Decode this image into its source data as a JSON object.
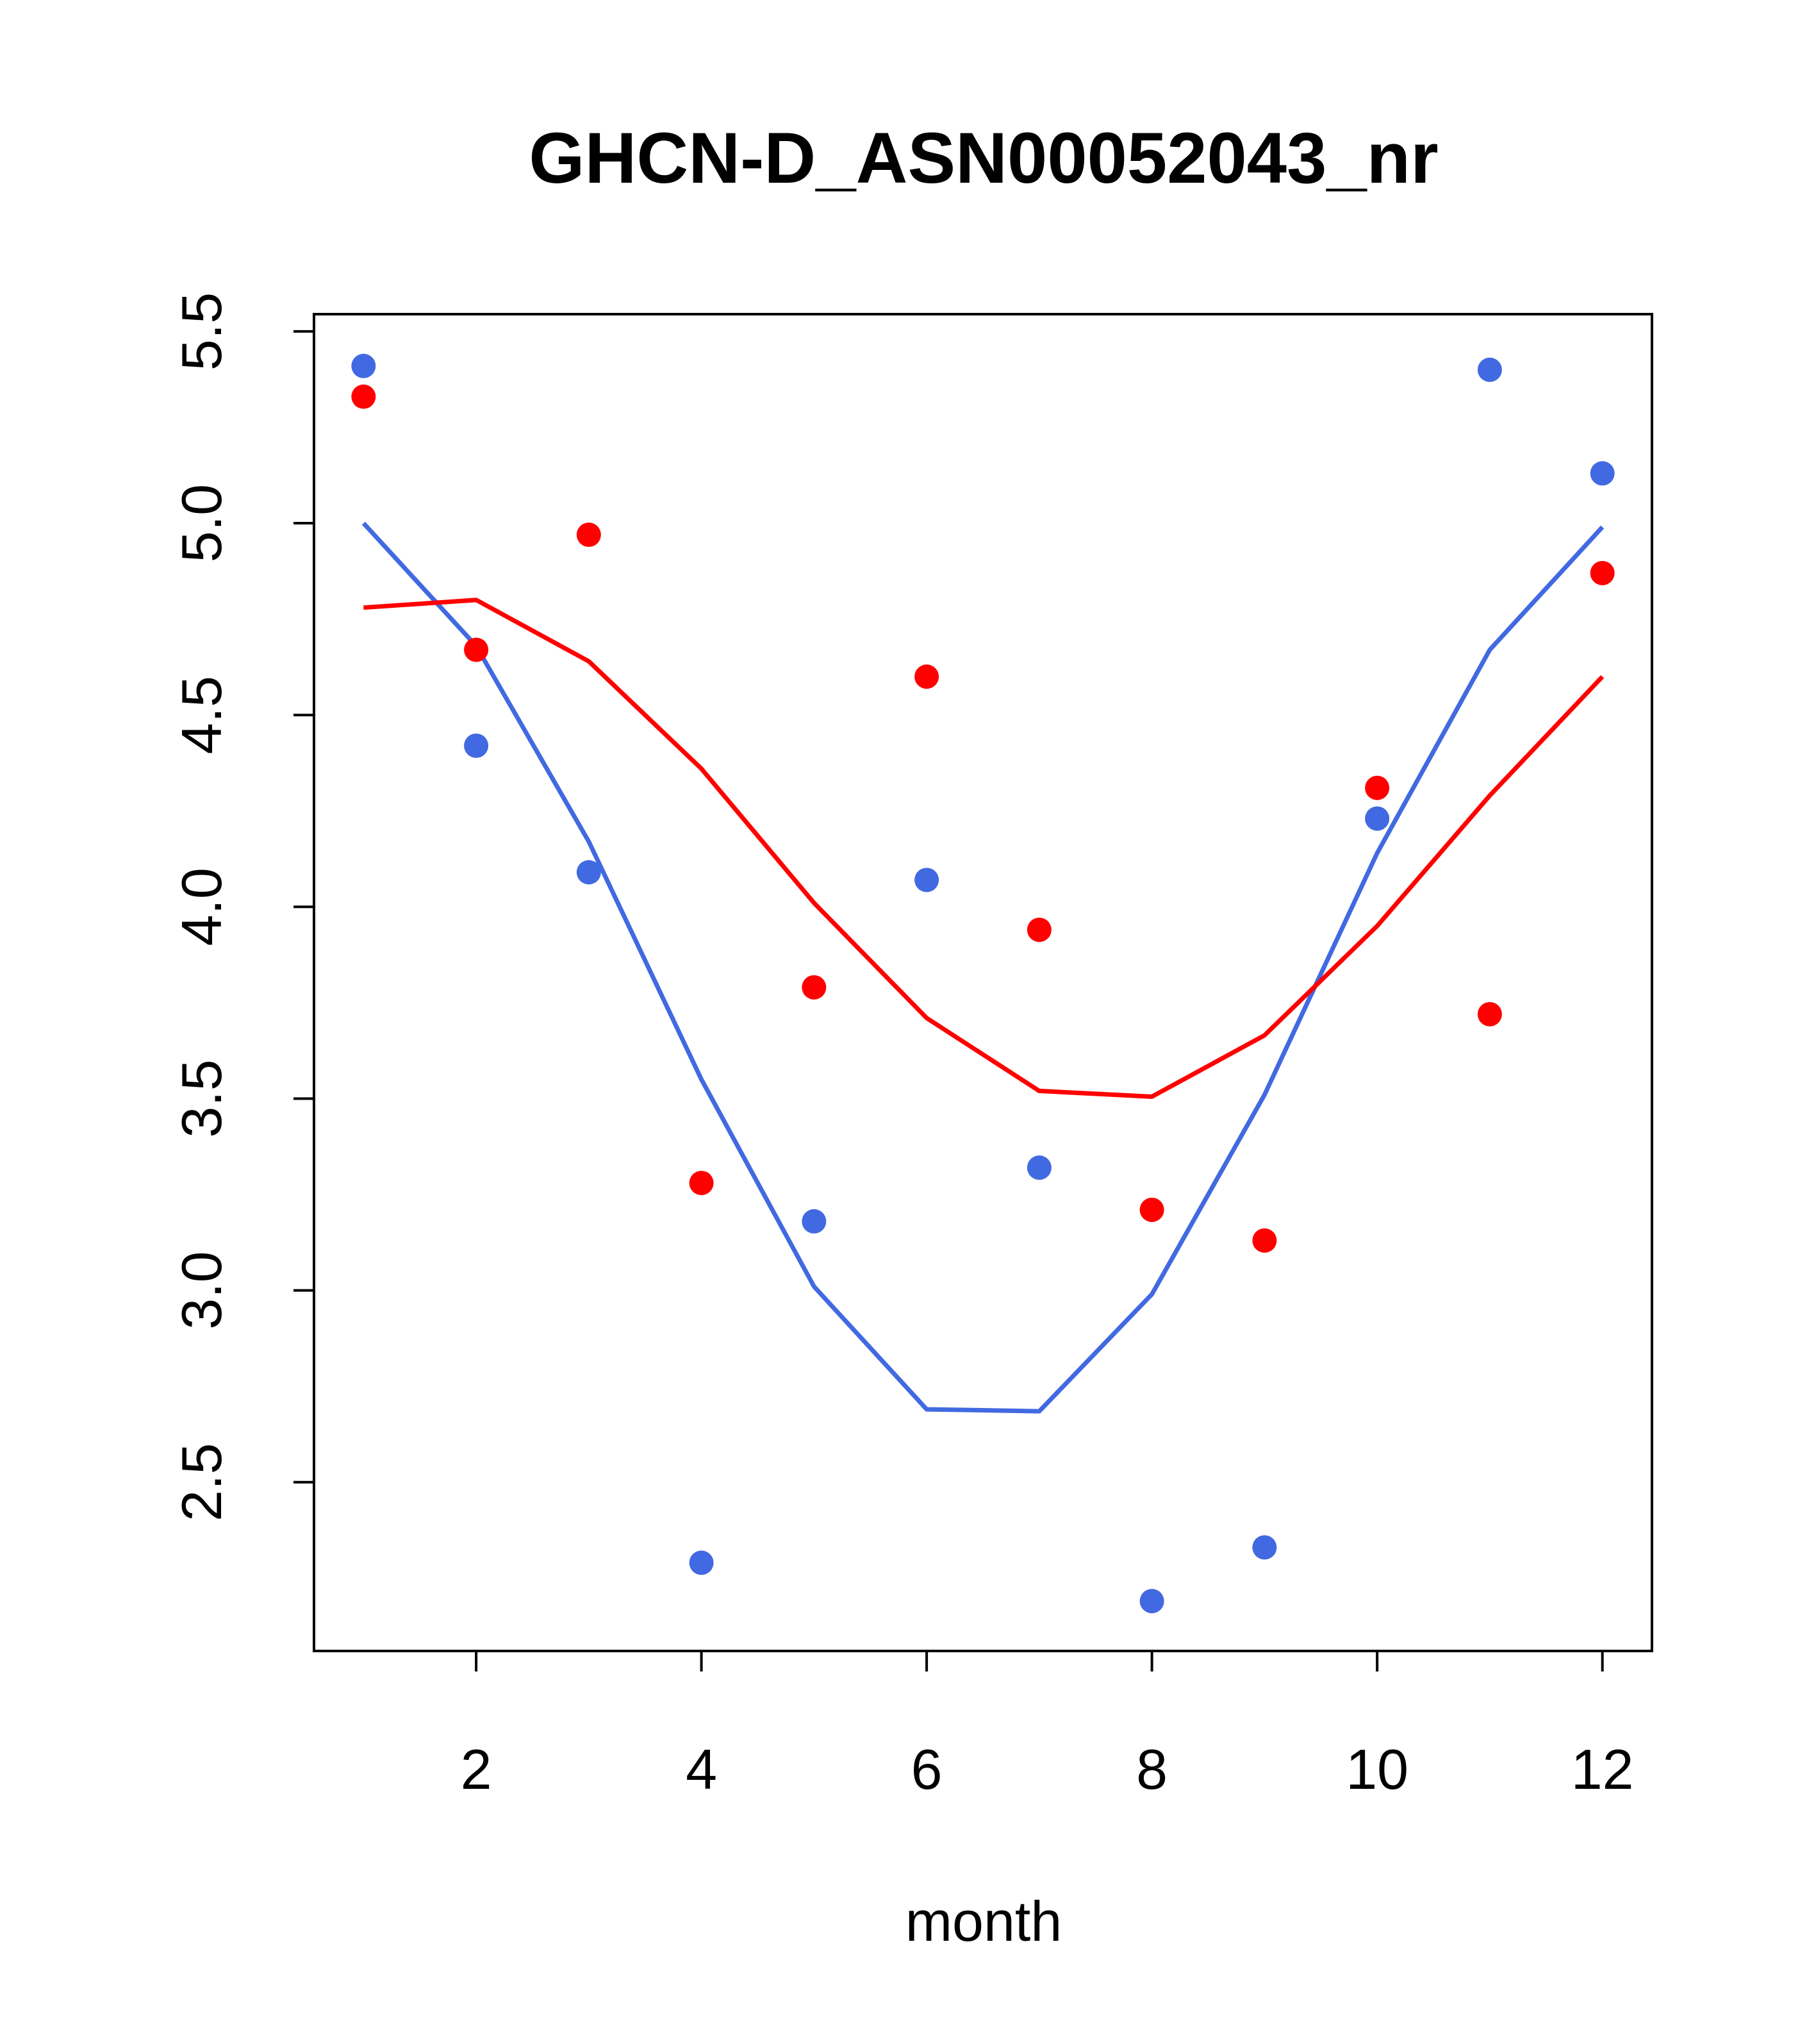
{
  "chart_data": {
    "type": "scatter",
    "title": "GHCN-D_ASN00052043_nr",
    "xlabel": "month",
    "ylabel": "",
    "xlim": [
      0.56,
      12.44
    ],
    "ylim": [
      2.06,
      5.545
    ],
    "x_ticks": [
      2,
      4,
      6,
      8,
      10,
      12
    ],
    "x_tick_labels": [
      "2",
      "4",
      "6",
      "8",
      "10",
      "12"
    ],
    "y_ticks": [
      2.5,
      3.0,
      3.5,
      4.0,
      4.5,
      5.0,
      5.5
    ],
    "y_tick_labels": [
      "2.5",
      "3.0",
      "3.5",
      "4.0",
      "4.5",
      "5.0",
      "5.5"
    ],
    "grid": false,
    "legend": "none",
    "x": [
      1,
      2,
      3,
      4,
      5,
      6,
      7,
      8,
      9,
      10,
      11,
      12
    ],
    "series": [
      {
        "color": "#4169e1",
        "points": [
          5.41,
          4.42,
          4.09,
          2.29,
          3.18,
          4.07,
          3.32,
          2.19,
          2.33,
          4.23,
          5.4,
          5.13
        ],
        "line": [
          5.0,
          4.68,
          4.17,
          3.55,
          3.01,
          2.69,
          2.685,
          2.99,
          3.51,
          4.14,
          4.67,
          4.99
        ]
      },
      {
        "color": "#ff0000",
        "points": [
          5.33,
          4.67,
          4.97,
          3.28,
          3.79,
          4.6,
          3.94,
          3.21,
          3.13,
          4.31,
          3.72,
          4.87
        ],
        "line": [
          4.78,
          4.8,
          4.64,
          4.36,
          4.01,
          3.71,
          3.52,
          3.505,
          3.665,
          3.95,
          4.29,
          4.6
        ]
      }
    ]
  }
}
